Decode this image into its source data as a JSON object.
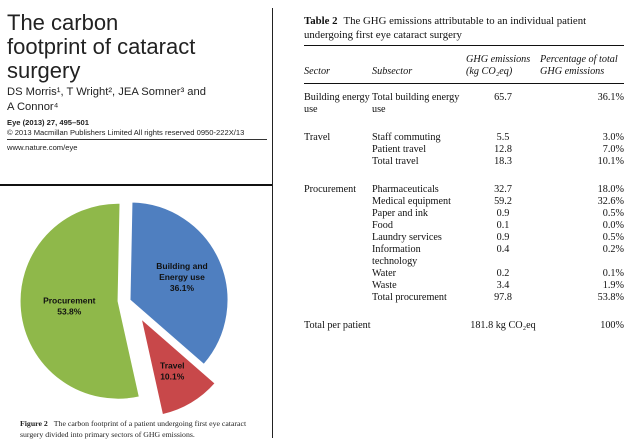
{
  "article": {
    "title_lines": [
      "The carbon",
      "footprint of cataract",
      "surgery"
    ],
    "authors_line1": "DS Morris¹, T Wright², JEA Somner³ and",
    "authors_line2": "A Connor⁴",
    "journal_ref": "Eye (2013) 27, 495–501",
    "copyright": "© 2013 Macmillan Publishers Limited All rights reserved 0950-222X/13",
    "website": "www.nature.com/eye"
  },
  "figure": {
    "number": "Figure 2",
    "caption": "The carbon footprint of a patient undergoing first eye cataract surgery divided into primary sectors of GHG emissions."
  },
  "chart_data": {
    "type": "pie",
    "title": "",
    "slices": [
      {
        "label": "Building and Energy use",
        "value": 36.1,
        "value_label": "36.1%",
        "color": "#4f7fc0"
      },
      {
        "label": "Travel",
        "value": 10.1,
        "value_label": "10.1%",
        "color": "#c8484a"
      },
      {
        "label": "Procurement",
        "value": 53.8,
        "value_label": "53.8%",
        "color": "#8fb84a"
      }
    ],
    "exploded": true,
    "legend": "none"
  },
  "table": {
    "number": "Table 2",
    "caption": "The GHG emissions attributable to an individual patient undergoing first eye cataract surgery",
    "headers": {
      "sector": "Sector",
      "subsector": "Subsector",
      "ghg": "GHG emissions (kg CO₂eq)",
      "percent": "Percentage of total GHG emissions"
    },
    "rows": [
      {
        "sector": "Building energy use",
        "subsector": "Total building energy use",
        "ghg": "65.7",
        "percent": "36.1%"
      },
      {
        "sector": "Travel",
        "subsector": "Staff commuting",
        "ghg": "5.5",
        "percent": "3.0%"
      },
      {
        "sector": "",
        "subsector": "Patient travel",
        "ghg": "12.8",
        "percent": "7.0%"
      },
      {
        "sector": "",
        "subsector": "Total travel",
        "ghg": "18.3",
        "percent": "10.1%"
      },
      {
        "sector": "Procurement",
        "subsector": "Pharmaceuticals",
        "ghg": "32.7",
        "percent": "18.0%"
      },
      {
        "sector": "",
        "subsector": "Medical equipment",
        "ghg": "59.2",
        "percent": "32.6%"
      },
      {
        "sector": "",
        "subsector": "Paper and ink",
        "ghg": "0.9",
        "percent": "0.5%"
      },
      {
        "sector": "",
        "subsector": "Food",
        "ghg": "0.1",
        "percent": "0.0%"
      },
      {
        "sector": "",
        "subsector": "Laundry services",
        "ghg": "0.9",
        "percent": "0.5%"
      },
      {
        "sector": "",
        "subsector": "Information technology",
        "ghg": "0.4",
        "percent": "0.2%"
      },
      {
        "sector": "",
        "subsector": "Water",
        "ghg": "0.2",
        "percent": "0.1%"
      },
      {
        "sector": "",
        "subsector": "Waste",
        "ghg": "3.4",
        "percent": "1.9%"
      },
      {
        "sector": "",
        "subsector": "Total procurement",
        "ghg": "97.8",
        "percent": "53.8%"
      },
      {
        "sector": "Total per patient",
        "subsector": "",
        "ghg": "181.8 kg CO₂eq",
        "percent": "100%"
      }
    ]
  }
}
